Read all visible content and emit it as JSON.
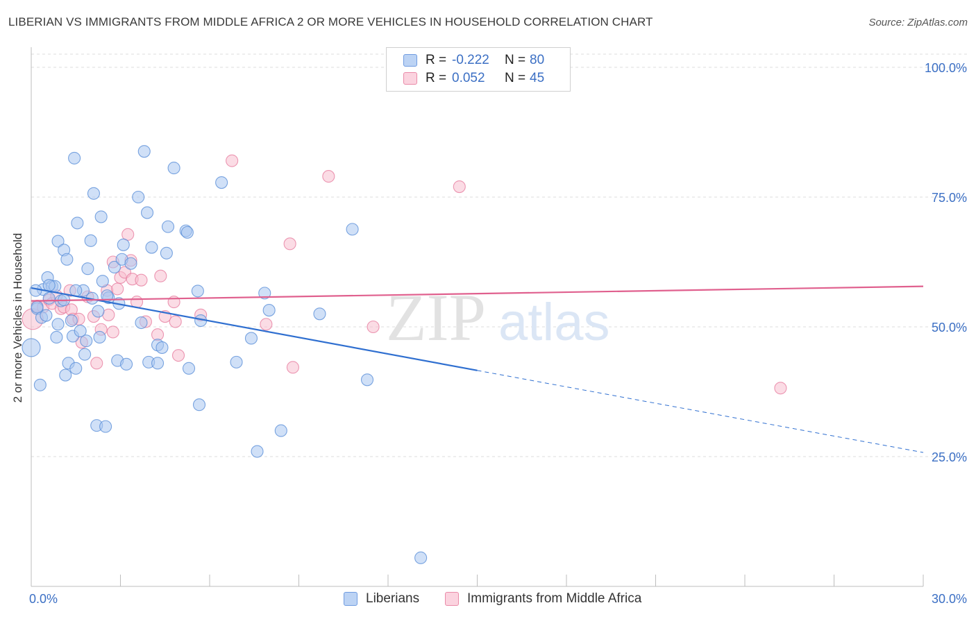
{
  "title": "LIBERIAN VS IMMIGRANTS FROM MIDDLE AFRICA 2 OR MORE VEHICLES IN HOUSEHOLD CORRELATION CHART",
  "source": "Source: ZipAtlas.com",
  "legend": {
    "r_label": "R =",
    "n_label": "N =",
    "rows": [
      {
        "r": "-0.222",
        "n": "80",
        "color": "#9fc0ef",
        "border": "#6f9be0"
      },
      {
        "r": "0.052",
        "n": "45",
        "color": "#f6b7ca",
        "border": "#ea8aa8"
      }
    ]
  },
  "colors": {
    "blue_fill": "#a9c6f0",
    "blue_stroke": "#5a8fd8",
    "blue_line": "#2f6fd0",
    "pink_fill": "#f7bfd0",
    "pink_stroke": "#e77ea0",
    "pink_line": "#e0608e",
    "tick_text": "#3b6fc4",
    "grid": "#dcdcdc"
  },
  "chart_data": {
    "type": "scatter",
    "xlabel": "",
    "ylabel": "2 or more Vehicles in Household",
    "xlim": [
      0,
      30
    ],
    "ylim": [
      0,
      100
    ],
    "x_tick_labels": [
      "0.0%",
      "30.0%"
    ],
    "y_tick_labels": [
      "100.0%",
      "75.0%",
      "50.0%",
      "25.0%"
    ],
    "y_ticks": [
      100,
      75,
      50,
      25
    ],
    "grid": true,
    "series": [
      {
        "name": "Liberians",
        "points": [
          [
            0.0,
            46.0
          ],
          [
            0.2,
            53.5
          ],
          [
            0.3,
            38.8
          ],
          [
            0.35,
            51.8
          ],
          [
            0.4,
            57.2
          ],
          [
            0.5,
            52.2
          ],
          [
            0.55,
            59.5
          ],
          [
            0.6,
            55.5
          ],
          [
            0.7,
            57.8
          ],
          [
            0.8,
            57.8
          ],
          [
            0.85,
            48.0
          ],
          [
            0.9,
            50.5
          ],
          [
            0.9,
            66.5
          ],
          [
            1.0,
            55.0
          ],
          [
            1.1,
            64.8
          ],
          [
            1.15,
            40.7
          ],
          [
            1.2,
            63.0
          ],
          [
            1.25,
            43.0
          ],
          [
            1.35,
            51.2
          ],
          [
            1.4,
            48.2
          ],
          [
            1.45,
            82.5
          ],
          [
            1.5,
            42.0
          ],
          [
            1.55,
            70.0
          ],
          [
            1.65,
            49.2
          ],
          [
            1.75,
            57.0
          ],
          [
            1.8,
            44.7
          ],
          [
            1.85,
            47.3
          ],
          [
            1.9,
            61.2
          ],
          [
            2.0,
            66.6
          ],
          [
            2.05,
            55.5
          ],
          [
            2.1,
            75.7
          ],
          [
            2.2,
            31.0
          ],
          [
            2.25,
            53.0
          ],
          [
            2.3,
            48.0
          ],
          [
            2.35,
            71.2
          ],
          [
            2.4,
            58.8
          ],
          [
            2.5,
            30.8
          ],
          [
            2.6,
            55.6
          ],
          [
            2.8,
            61.5
          ],
          [
            2.9,
            43.5
          ],
          [
            2.95,
            54.5
          ],
          [
            3.05,
            63.0
          ],
          [
            3.1,
            65.8
          ],
          [
            3.2,
            42.8
          ],
          [
            3.35,
            62.2
          ],
          [
            3.6,
            75.0
          ],
          [
            3.7,
            50.8
          ],
          [
            3.8,
            83.8
          ],
          [
            3.9,
            72.0
          ],
          [
            3.95,
            43.2
          ],
          [
            4.05,
            65.3
          ],
          [
            4.25,
            46.5
          ],
          [
            4.4,
            46.0
          ],
          [
            4.55,
            64.2
          ],
          [
            4.6,
            69.3
          ],
          [
            4.8,
            80.6
          ],
          [
            4.25,
            43.0
          ],
          [
            5.2,
            68.5
          ],
          [
            5.25,
            68.2
          ],
          [
            5.3,
            42.0
          ],
          [
            5.6,
            56.9
          ],
          [
            5.65,
            35.0
          ],
          [
            5.7,
            51.2
          ],
          [
            6.4,
            77.8
          ],
          [
            6.9,
            43.2
          ],
          [
            7.4,
            47.8
          ],
          [
            7.6,
            26.0
          ],
          [
            7.85,
            56.5
          ],
          [
            8.0,
            53.2
          ],
          [
            8.4,
            30.0
          ],
          [
            9.7,
            52.5
          ],
          [
            10.8,
            68.8
          ],
          [
            11.3,
            39.8
          ],
          [
            13.1,
            5.5
          ],
          [
            0.2,
            53.8
          ],
          [
            0.6,
            58.0
          ],
          [
            1.1,
            55.2
          ],
          [
            1.5,
            57.0
          ],
          [
            2.55,
            56.0
          ],
          [
            0.15,
            57.0
          ]
        ]
      },
      {
        "name": "Immigrants from Middle Africa",
        "points": [
          [
            0.05,
            51.5
          ],
          [
            0.2,
            54.0
          ],
          [
            0.4,
            53.8
          ],
          [
            0.6,
            55.2
          ],
          [
            0.7,
            54.5
          ],
          [
            0.85,
            56.0
          ],
          [
            1.0,
            53.5
          ],
          [
            1.1,
            53.8
          ],
          [
            1.3,
            57.0
          ],
          [
            1.35,
            53.3
          ],
          [
            1.4,
            51.5
          ],
          [
            1.6,
            51.5
          ],
          [
            1.7,
            47.0
          ],
          [
            1.9,
            55.8
          ],
          [
            2.1,
            52.0
          ],
          [
            2.2,
            43.0
          ],
          [
            2.35,
            49.5
          ],
          [
            2.55,
            57.0
          ],
          [
            2.75,
            62.5
          ],
          [
            2.9,
            57.3
          ],
          [
            3.0,
            59.5
          ],
          [
            3.15,
            60.5
          ],
          [
            3.25,
            67.8
          ],
          [
            3.4,
            59.2
          ],
          [
            3.55,
            54.8
          ],
          [
            3.7,
            59.0
          ],
          [
            3.85,
            51.0
          ],
          [
            4.25,
            48.5
          ],
          [
            4.35,
            59.8
          ],
          [
            4.5,
            52.0
          ],
          [
            4.8,
            54.8
          ],
          [
            4.85,
            51.0
          ],
          [
            4.95,
            44.5
          ],
          [
            5.7,
            52.3
          ],
          [
            6.75,
            82.0
          ],
          [
            7.9,
            50.5
          ],
          [
            8.7,
            66.0
          ],
          [
            8.8,
            42.2
          ],
          [
            10.0,
            79.0
          ],
          [
            11.5,
            50.0
          ],
          [
            14.4,
            77.0
          ],
          [
            25.2,
            38.2
          ],
          [
            2.6,
            52.3
          ],
          [
            3.35,
            62.8
          ],
          [
            2.75,
            49.0
          ]
        ]
      }
    ],
    "trend_lines": [
      {
        "series": "Liberians",
        "x": [
          0,
          15
        ],
        "y": [
          57.5,
          41.6
        ],
        "dashed_extension_to": [
          30,
          25.8
        ]
      },
      {
        "series": "Immigrants from Middle Africa",
        "x": [
          0,
          30
        ],
        "y": [
          55.0,
          57.8
        ]
      }
    ]
  },
  "watermark": {
    "zip": "ZIP",
    "atlas": "atlas"
  }
}
